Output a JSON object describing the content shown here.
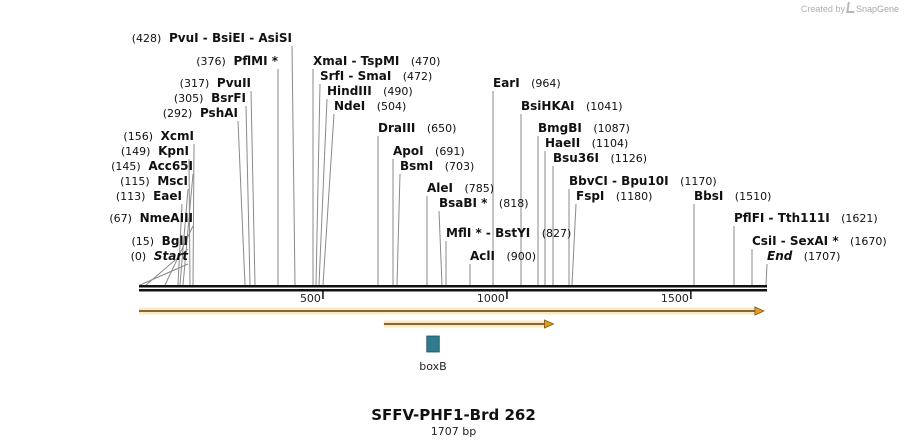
{
  "credit": {
    "prefix": "Created by",
    "brand": "SnapGene"
  },
  "map": {
    "name": "SFFV-PHF1-Brd 262",
    "length_label": "1707 bp",
    "length": 1707,
    "ticks": [
      {
        "value": 500,
        "label": "500"
      },
      {
        "value": 1000,
        "label": "1000"
      },
      {
        "value": 1500,
        "label": "1500"
      }
    ],
    "features": [
      {
        "name": "boxB",
        "start": 0.455,
        "end": 0.475,
        "type": "small",
        "color": "#2f7b8e"
      }
    ],
    "orfs": [
      {
        "start": 0.0,
        "end": 0.995,
        "color": "#e89b1a"
      },
      {
        "start": 0.39,
        "end": 0.66,
        "color": "#e89b1a"
      }
    ],
    "sites": [
      {
        "name": "Start",
        "pos": "(0)",
        "italic": true,
        "left": true
      },
      {
        "name": "BglI",
        "pos": "(15)",
        "left": true
      },
      {
        "name": "NmeAIII",
        "pos": "(67)",
        "left": true
      },
      {
        "name": "EaeI",
        "pos": "(113)",
        "left": true
      },
      {
        "name": "MscI",
        "pos": "(115)",
        "left": true
      },
      {
        "name": "Acc65I",
        "pos": "(145)",
        "left": true
      },
      {
        "name": "KpnI",
        "pos": "(149)",
        "left": true
      },
      {
        "name": "XcmI",
        "pos": "(156)",
        "left": true
      },
      {
        "name": "PshAI",
        "pos": "(292)",
        "left": true
      },
      {
        "name": "BsrFI",
        "pos": "(305)",
        "left": true
      },
      {
        "name": "PvuII",
        "pos": "(317)",
        "left": true
      },
      {
        "name": "PflMI *",
        "pos": "(376)",
        "left": true
      },
      {
        "name": "PvuI  - BsiEI  - AsiSI",
        "pos": "(428)",
        "left": true
      },
      {
        "name": "XmaI  - TspMI",
        "pos": "(470)"
      },
      {
        "name": "SrfI  - SmaI",
        "pos": "(472)"
      },
      {
        "name": "HindIII",
        "pos": "(490)"
      },
      {
        "name": "NdeI",
        "pos": "(504)"
      },
      {
        "name": "DraIII",
        "pos": "(650)"
      },
      {
        "name": "ApoI",
        "pos": "(691)"
      },
      {
        "name": "BsmI",
        "pos": "(703)"
      },
      {
        "name": "AleI",
        "pos": "(785)"
      },
      {
        "name": "BsaBI *",
        "pos": "(818)"
      },
      {
        "name": "MflI *  - BstYI",
        "pos": "(827)"
      },
      {
        "name": "AclI",
        "pos": "(900)"
      },
      {
        "name": "EarI",
        "pos": "(964)"
      },
      {
        "name": "BsiHKAI",
        "pos": "(1041)"
      },
      {
        "name": "BmgBI",
        "pos": "(1087)"
      },
      {
        "name": "HaeII",
        "pos": "(1104)"
      },
      {
        "name": "Bsu36I",
        "pos": "(1126)"
      },
      {
        "name": "BbvCI  - Bpu10I",
        "pos": "(1170)"
      },
      {
        "name": "FspI",
        "pos": "(1180)"
      },
      {
        "name": "BbsI",
        "pos": "(1510)"
      },
      {
        "name": "PflFI  - Tth111I",
        "pos": "(1621)"
      },
      {
        "name": "CsiI  - SexAI *",
        "pos": "(1670)"
      },
      {
        "name": "End",
        "pos": "(1707)",
        "italic": true
      }
    ]
  }
}
